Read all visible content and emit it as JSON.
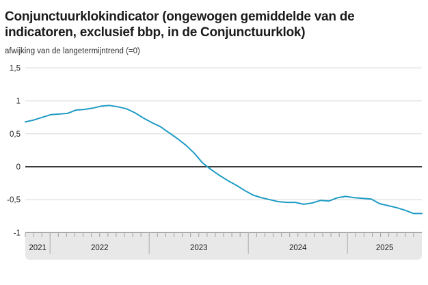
{
  "header": {
    "title_lines": [
      "Conjunctuurklokindicator (ongewogen gemiddelde van de",
      "indicatoren, exclusief bbp, in de Conjunctuurklok)"
    ],
    "subtitle": "afwijking van de langetermijntrend (=0)"
  },
  "chart_data": {
    "type": "line",
    "title": "Conjunctuurklokindicator (ongewogen gemiddelde van de indicatoren, exclusief bbp, in de Conjunctuurklok)",
    "subtitle": "afwijking van de langetermijntrend (=0)",
    "frequency": "monthly",
    "x_start": "2021-10",
    "x_end": "2025-09",
    "ylim": [
      -1,
      1.5
    ],
    "yticks": [
      {
        "value": 1.5,
        "label": "1,5"
      },
      {
        "value": 1,
        "label": "1"
      },
      {
        "value": 0.5,
        "label": "0,5"
      },
      {
        "value": 0,
        "label": "0"
      },
      {
        "value": -0.5,
        "label": "-0,5"
      },
      {
        "value": -1,
        "label": "-1"
      }
    ],
    "grid": true,
    "zero_line": true,
    "legend_position": "none",
    "year_segments": [
      {
        "label": "2021",
        "months": 3
      },
      {
        "label": "2022",
        "months": 12
      },
      {
        "label": "2023",
        "months": 12
      },
      {
        "label": "2024",
        "months": 12
      },
      {
        "label": "2025",
        "months": 9
      }
    ],
    "series": [
      {
        "name": "Conjunctuurklokindicator",
        "color": "#1f9bc4",
        "values": [
          0.68,
          0.71,
          0.75,
          0.79,
          0.8,
          0.81,
          0.86,
          0.87,
          0.89,
          0.92,
          0.93,
          0.91,
          0.88,
          0.82,
          0.74,
          0.67,
          0.61,
          0.52,
          0.43,
          0.33,
          0.21,
          0.06,
          -0.04,
          -0.13,
          -0.21,
          -0.28,
          -0.36,
          -0.43,
          -0.47,
          -0.5,
          -0.53,
          -0.54,
          -0.54,
          -0.57,
          -0.55,
          -0.51,
          -0.52,
          -0.47,
          -0.45,
          -0.47,
          -0.48,
          -0.49,
          -0.56,
          -0.59,
          -0.62,
          -0.66,
          -0.71,
          -0.71
        ]
      }
    ]
  },
  "colors": {
    "line": "#1f9bc4",
    "gridline": "#dcdcdc",
    "zero_line": "#3c3c3c",
    "axis_band_fill": "#e8e8e8",
    "axis_band_border": "#909090",
    "tick": "#a0a0a0",
    "year_separator": "#b6b6b6",
    "label_text": "#1b1b1b"
  }
}
